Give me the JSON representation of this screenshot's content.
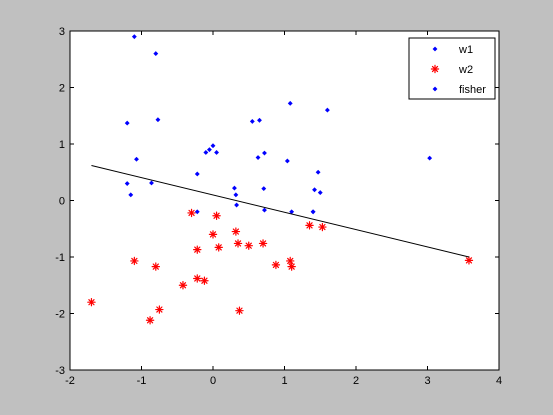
{
  "chart_data": {
    "type": "scatter",
    "title": "",
    "xlabel": "",
    "ylabel": "",
    "xlim": [
      -2,
      4
    ],
    "ylim": [
      -3,
      3
    ],
    "xticks": [
      -2,
      -1,
      0,
      1,
      2,
      3,
      4
    ],
    "yticks": [
      -3,
      -2,
      -1,
      0,
      1,
      2,
      3
    ],
    "grid": false,
    "legend_position": "top-right",
    "series": [
      {
        "name": "w1",
        "marker": "dot",
        "color": "#0000ff",
        "points": [
          [
            -1.1,
            2.9
          ],
          [
            -0.8,
            2.6
          ],
          [
            -1.2,
            1.37
          ],
          [
            -0.77,
            1.43
          ],
          [
            -1.07,
            0.73
          ],
          [
            -1.2,
            0.3
          ],
          [
            -1.15,
            0.1
          ],
          [
            -0.86,
            0.31
          ],
          [
            -0.22,
            0.47
          ],
          [
            -0.1,
            0.85
          ],
          [
            -0.05,
            0.9
          ],
          [
            0.0,
            0.97
          ],
          [
            0.05,
            0.85
          ],
          [
            0.55,
            1.4
          ],
          [
            0.65,
            1.42
          ],
          [
            0.63,
            0.76
          ],
          [
            0.72,
            0.84
          ],
          [
            1.08,
            1.72
          ],
          [
            1.04,
            0.7
          ],
          [
            1.6,
            1.6
          ],
          [
            3.03,
            0.75
          ],
          [
            1.47,
            0.5
          ],
          [
            1.5,
            0.14
          ],
          [
            1.42,
            0.19
          ],
          [
            0.3,
            0.22
          ],
          [
            0.32,
            0.1
          ],
          [
            0.33,
            -0.08
          ],
          [
            0.71,
            0.21
          ],
          [
            0.72,
            -0.17
          ],
          [
            -0.22,
            -0.2
          ],
          [
            1.1,
            -0.2
          ],
          [
            1.4,
            -0.2
          ],
          [
            1.4,
            -0.2
          ]
        ]
      },
      {
        "name": "w2",
        "marker": "asterisk",
        "color": "#ff0000",
        "points": [
          [
            -1.7,
            -1.8
          ],
          [
            -1.1,
            -1.07
          ],
          [
            -0.8,
            -1.17
          ],
          [
            -0.88,
            -2.12
          ],
          [
            -0.75,
            -1.93
          ],
          [
            -0.3,
            -0.22
          ],
          [
            -0.22,
            -0.87
          ],
          [
            -0.22,
            -1.38
          ],
          [
            -0.12,
            -1.42
          ],
          [
            -0.42,
            -1.5
          ],
          [
            0.05,
            -0.27
          ],
          [
            0.0,
            -0.6
          ],
          [
            0.08,
            -0.83
          ],
          [
            0.32,
            -0.55
          ],
          [
            0.35,
            -0.76
          ],
          [
            0.5,
            -0.8
          ],
          [
            0.7,
            -0.76
          ],
          [
            0.37,
            -1.95
          ],
          [
            0.88,
            -1.14
          ],
          [
            1.08,
            -1.07
          ],
          [
            1.1,
            -1.17
          ],
          [
            1.35,
            -0.44
          ],
          [
            1.53,
            -0.47
          ],
          [
            3.58,
            -1.06
          ]
        ]
      },
      {
        "name": "fisher",
        "type": "line",
        "marker": "none",
        "color": "#000000",
        "points": [
          [
            -1.7,
            0.62
          ],
          [
            3.58,
            -1.0
          ]
        ]
      }
    ]
  },
  "legend": {
    "items": [
      {
        "label": "w1",
        "marker": "dot",
        "color": "#0000ff"
      },
      {
        "label": "w2",
        "marker": "asterisk",
        "color": "#ff0000"
      },
      {
        "label": "fisher",
        "marker": "dot",
        "color": "#0000ff"
      }
    ]
  }
}
